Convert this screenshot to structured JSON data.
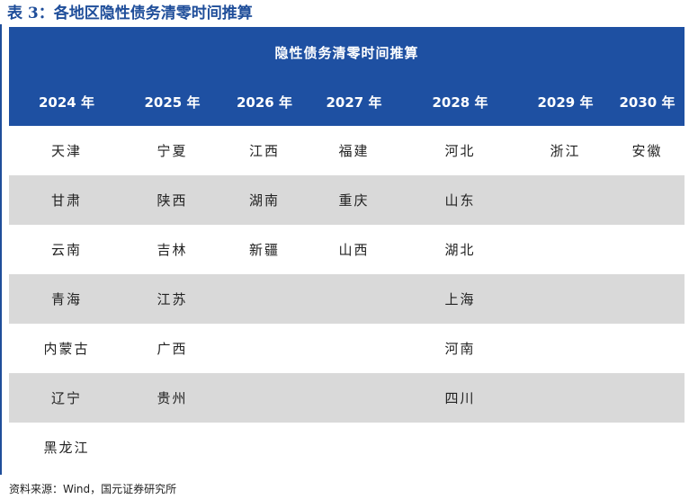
{
  "caption": "表 3：各地区隐性债务清零时间推算",
  "table": {
    "banner": "隐性债务清零时间推算",
    "years": [
      "2024 年",
      "2025 年",
      "2026 年",
      "2027 年",
      "2028 年",
      "2029 年",
      "2030 年"
    ],
    "rows": [
      [
        "天津",
        "宁夏",
        "江西",
        "福建",
        "河北",
        "浙江",
        "安徽"
      ],
      [
        "甘肃",
        "陕西",
        "湖南",
        "重庆",
        "山东",
        "",
        ""
      ],
      [
        "云南",
        "吉林",
        "新疆",
        "山西",
        "湖北",
        "",
        ""
      ],
      [
        "青海",
        "江苏",
        "",
        "",
        "上海",
        "",
        ""
      ],
      [
        "内蒙古",
        "广西",
        "",
        "",
        "河南",
        "",
        ""
      ],
      [
        "辽宁",
        "贵州",
        "",
        "",
        "四川",
        "",
        ""
      ],
      [
        "黑龙江",
        "",
        "",
        "",
        "",
        "",
        ""
      ]
    ]
  },
  "source": "资料来源：Wind，国元证券研究所",
  "colors": {
    "header": "#1e50a2",
    "stripe": "#d9d9d9",
    "caption": "#1f4e9a"
  }
}
